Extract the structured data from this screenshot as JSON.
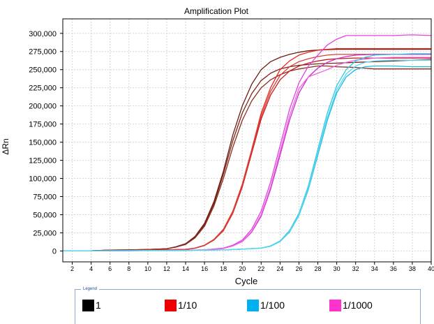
{
  "chart_data": {
    "type": "line",
    "title": "Amplification Plot",
    "xlabel": "Cycle",
    "ylabel": "ΔRn",
    "xlim": [
      1,
      40
    ],
    "ylim": [
      -15000,
      320000
    ],
    "grid": true,
    "x_ticks": [
      "2",
      "4",
      "6",
      "8",
      "10",
      "12",
      "14",
      "16",
      "18",
      "20",
      "22",
      "24",
      "26",
      "28",
      "30",
      "32",
      "34",
      "36",
      "38",
      "40"
    ],
    "y_ticks": [
      "0",
      "25,000",
      "50,000",
      "75,000",
      "100,000",
      "125,000",
      "150,000",
      "175,000",
      "200,000",
      "225,000",
      "250,000",
      "275,000",
      "300,000"
    ],
    "series": [
      {
        "group": "1",
        "color": "#6b1a10",
        "x": [
          1,
          4,
          6,
          8,
          10,
          12,
          13,
          14,
          15,
          16,
          17,
          18,
          19,
          20,
          21,
          22,
          23,
          24,
          25,
          26,
          27,
          28,
          30,
          32,
          34,
          36,
          38,
          40
        ],
        "y": [
          0,
          300,
          1200,
          1500,
          2000,
          3000,
          6000,
          10000,
          20000,
          38000,
          68000,
          110000,
          160000,
          200000,
          230000,
          250000,
          261000,
          267000,
          271000,
          274000,
          276000,
          277000,
          278000,
          278000,
          278000,
          278000,
          278000,
          278000
        ]
      },
      {
        "group": "1",
        "color": "#7a2418",
        "x": [
          1,
          4,
          6,
          8,
          10,
          12,
          13,
          14,
          15,
          16,
          17,
          18,
          19,
          20,
          21,
          22,
          23,
          24,
          25,
          26,
          27,
          28,
          30,
          32,
          34,
          36,
          38,
          40
        ],
        "y": [
          0,
          300,
          1200,
          1500,
          2000,
          3000,
          5500,
          9500,
          19000,
          36000,
          65000,
          106000,
          152000,
          190000,
          217000,
          235000,
          245000,
          251000,
          254000,
          256000,
          257000,
          258000,
          259000,
          260000,
          261000,
          262000,
          263000,
          264000
        ]
      },
      {
        "group": "1",
        "color": "#8c2c1c",
        "x": [
          1,
          4,
          6,
          8,
          10,
          12,
          13,
          14,
          15,
          16,
          17,
          18,
          19,
          20,
          21,
          22,
          23,
          24,
          25,
          26,
          27,
          28,
          29,
          30,
          32,
          33,
          34,
          36,
          38,
          40
        ],
        "y": [
          0,
          300,
          1200,
          1500,
          2000,
          3000,
          5500,
          9000,
          18000,
          34000,
          62000,
          100000,
          143000,
          180000,
          207000,
          225000,
          236000,
          243000,
          248000,
          251000,
          253000,
          255000,
          255000,
          254000,
          253000,
          252000,
          251000,
          251000,
          251000,
          251000
        ]
      },
      {
        "group": "1/10",
        "color": "#e8281e",
        "x": [
          1,
          8,
          10,
          12,
          14,
          15,
          16,
          17,
          18,
          19,
          20,
          21,
          22,
          23,
          24,
          25,
          26,
          27,
          28,
          29,
          30,
          32,
          34,
          36,
          38,
          40
        ],
        "y": [
          0,
          600,
          1200,
          1500,
          2200,
          4000,
          8000,
          16000,
          30000,
          55000,
          92000,
          140000,
          190000,
          225000,
          250000,
          262000,
          270000,
          274000,
          277000,
          278000,
          279000,
          279000,
          279000,
          279000,
          279000,
          279000
        ]
      },
      {
        "group": "1/10",
        "color": "#c41a1a",
        "x": [
          1,
          8,
          10,
          12,
          14,
          15,
          16,
          17,
          18,
          19,
          20,
          21,
          22,
          23,
          24,
          25,
          26,
          27,
          28,
          29,
          30,
          32,
          34,
          36,
          38,
          40
        ],
        "y": [
          0,
          600,
          1200,
          1500,
          2200,
          3800,
          7500,
          15000,
          28000,
          52000,
          88000,
          135000,
          182000,
          215000,
          236000,
          248000,
          255000,
          259000,
          262000,
          264000,
          265000,
          266000,
          266000,
          266000,
          266000,
          266000
        ]
      },
      {
        "group": "1/10",
        "color": "#d8403a",
        "x": [
          1,
          8,
          10,
          12,
          14,
          15,
          16,
          17,
          18,
          19,
          20,
          21,
          22,
          23,
          24,
          25,
          26,
          27,
          28,
          29,
          30,
          32,
          34,
          36,
          38,
          40
        ],
        "y": [
          0,
          600,
          1200,
          1500,
          2200,
          3800,
          7800,
          15500,
          29000,
          53000,
          90000,
          138000,
          186000,
          220000,
          242000,
          254000,
          261000,
          265000,
          268000,
          270000,
          271000,
          271000,
          271000,
          271000,
          271000,
          271000
        ]
      },
      {
        "group": "1/1000",
        "color": "#e640e0",
        "x": [
          1,
          10,
          14,
          16,
          18,
          19,
          20,
          21,
          22,
          23,
          24,
          25,
          26,
          27,
          28,
          29,
          30,
          31,
          32,
          33,
          34,
          36,
          38,
          40
        ],
        "y": [
          0,
          600,
          1000,
          1500,
          4000,
          8000,
          15000,
          30000,
          55000,
          95000,
          145000,
          195000,
          232000,
          255000,
          270000,
          284000,
          292000,
          297000,
          297000,
          297000,
          297000,
          297000,
          298000,
          297000
        ]
      },
      {
        "group": "1/1000",
        "color": "#cc2cc8",
        "x": [
          1,
          10,
          14,
          16,
          18,
          19,
          20,
          21,
          22,
          23,
          24,
          25,
          26,
          27,
          28,
          29,
          30,
          31,
          32,
          34,
          36,
          38,
          40
        ],
        "y": [
          0,
          600,
          1000,
          1500,
          3500,
          7000,
          13000,
          26000,
          48000,
          85000,
          132000,
          180000,
          218000,
          240000,
          252000,
          260000,
          265000,
          268000,
          270000,
          271000,
          271000,
          271000,
          271000
        ]
      },
      {
        "group": "1/1000",
        "color": "#f060e8",
        "x": [
          1,
          10,
          14,
          16,
          18,
          19,
          20,
          21,
          22,
          23,
          24,
          25,
          26,
          27,
          28,
          29,
          30,
          31,
          32,
          34,
          36,
          38,
          40
        ],
        "y": [
          0,
          600,
          1000,
          1500,
          3500,
          7000,
          13500,
          27000,
          50000,
          88000,
          137000,
          186000,
          224000,
          240000,
          245000,
          250000,
          256000,
          260000,
          263000,
          266000,
          267000,
          267000,
          267000
        ]
      },
      {
        "group": "1/100",
        "color": "#2cc8e8",
        "x": [
          1,
          14,
          18,
          20,
          22,
          23,
          24,
          25,
          26,
          27,
          28,
          29,
          30,
          31,
          32,
          33,
          34,
          36,
          38,
          40
        ],
        "y": [
          0,
          800,
          1500,
          2500,
          4000,
          7000,
          14000,
          28000,
          52000,
          90000,
          140000,
          190000,
          228000,
          250000,
          262000,
          267000,
          270000,
          271000,
          272000,
          272000
        ]
      },
      {
        "group": "1/100",
        "color": "#1ab8dc",
        "x": [
          1,
          14,
          18,
          20,
          22,
          23,
          24,
          25,
          26,
          27,
          28,
          29,
          30,
          31,
          32,
          33,
          34,
          36,
          38,
          40
        ],
        "y": [
          0,
          800,
          1500,
          2500,
          4000,
          6500,
          13000,
          26000,
          49000,
          85000,
          132000,
          180000,
          218000,
          240000,
          250000,
          254000,
          255000,
          255000,
          254000,
          254000
        ]
      },
      {
        "group": "1/100",
        "color": "#5ad8f0",
        "x": [
          1,
          14,
          18,
          20,
          22,
          23,
          24,
          25,
          26,
          27,
          28,
          29,
          30,
          31,
          32,
          33,
          34,
          36,
          38,
          40
        ],
        "y": [
          0,
          800,
          1500,
          2500,
          4000,
          6500,
          13500,
          27000,
          50000,
          87000,
          135000,
          184000,
          222000,
          244000,
          255000,
          260000,
          262000,
          263000,
          263000,
          263000
        ]
      }
    ],
    "legend": {
      "title": "Legend",
      "items": [
        {
          "label": "1",
          "color": "#000000"
        },
        {
          "label": "1/10",
          "color": "#ee0000"
        },
        {
          "label": "1/100",
          "color": "#00b0f0"
        },
        {
          "label": "1/1000",
          "color": "#ff33cc"
        }
      ]
    }
  }
}
